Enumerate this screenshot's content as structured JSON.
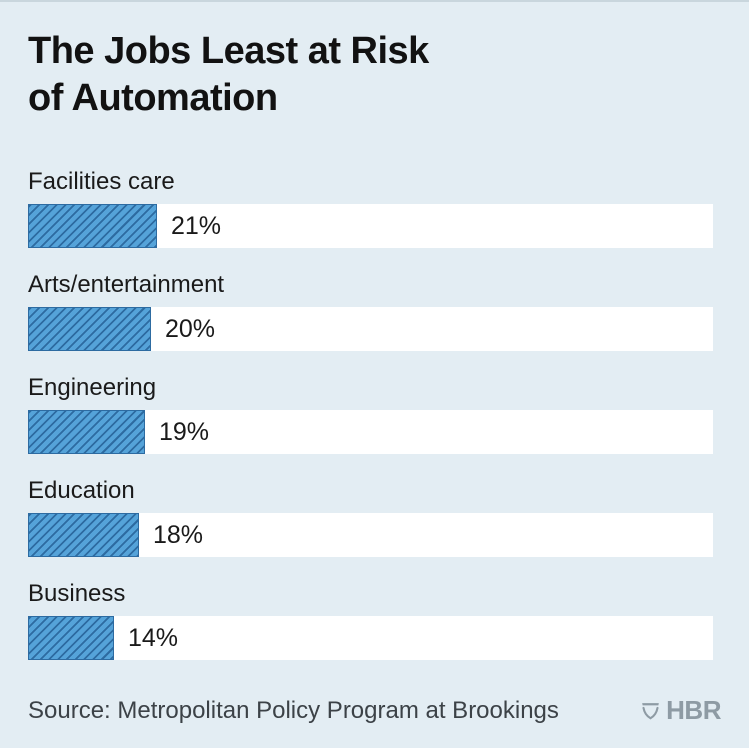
{
  "chart_data": {
    "type": "bar",
    "orientation": "horizontal",
    "title": "The Jobs Least at Risk\nof Automation",
    "categories": [
      "Facilities care",
      "Arts/entertainment",
      "Engineering",
      "Education",
      "Business"
    ],
    "values": [
      21,
      20,
      19,
      18,
      14
    ],
    "value_labels": [
      "21%",
      "20%",
      "19%",
      "18%",
      "14%"
    ],
    "unit": "percent",
    "xlabel": "",
    "ylabel": "",
    "xlim": [
      0,
      100
    ],
    "grid": false,
    "legend": false,
    "bar_pattern": "diagonal-hatch",
    "colors": {
      "bar_fill": "#55a3d9",
      "bar_hatch": "#2d6ba1",
      "track": "#ffffff"
    }
  },
  "footer": {
    "source": "Source: Metropolitan Policy Program at Brookings",
    "brand": "HBR",
    "brand_icon": "hbr-shield-icon"
  },
  "colors": {
    "background": "#e3edf3",
    "title_text": "#121212",
    "label_text": "#1a1a1a",
    "source_text": "#3c4247",
    "brand": "#8e9ba4"
  }
}
